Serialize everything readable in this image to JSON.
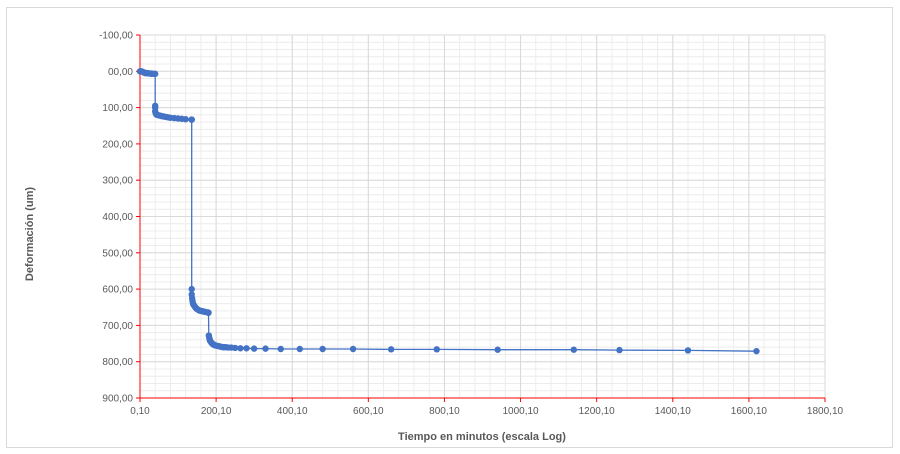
{
  "chart_data": {
    "type": "scatter",
    "title": "",
    "xlabel": "Tiempo en minutos (escala Log)",
    "ylabel": "Deformación (um)",
    "xlim": [
      0.1,
      1800.1
    ],
    "ylim": [
      -100,
      900
    ],
    "y_inverted": true,
    "x_ticks": [
      "0,10",
      "200,10",
      "400,10",
      "600,10",
      "800,10",
      "1000,10",
      "1200,10",
      "1400,10",
      "1600,10",
      "1800,10"
    ],
    "x_tick_values": [
      0.1,
      200.1,
      400.1,
      600.1,
      800.1,
      1000.1,
      1200.1,
      1400.1,
      1600.1,
      1800.1
    ],
    "y_ticks": [
      "-100,00",
      "00,00",
      "100,00",
      "200,00",
      "300,00",
      "400,00",
      "500,00",
      "600,00",
      "700,00",
      "800,00",
      "900,00"
    ],
    "y_tick_values": [
      -100,
      0,
      100,
      200,
      300,
      400,
      500,
      600,
      700,
      800,
      900
    ],
    "grid": true,
    "legend": "none",
    "colors": {
      "series": "#4472c4",
      "axis": "#ff0000",
      "grid": "#d9d9d9",
      "text": "#595959"
    },
    "series": [
      {
        "x": [
          0.1,
          2,
          4,
          6,
          8,
          10,
          12,
          14,
          16,
          18,
          20,
          24,
          28,
          30,
          32,
          34,
          36,
          40,
          40,
          40,
          40,
          41,
          42,
          43,
          45,
          48,
          52,
          56,
          60,
          65,
          70,
          75,
          80,
          90,
          100,
          110,
          120,
          136,
          136,
          136,
          136,
          137,
          138,
          139,
          140,
          142,
          144,
          146,
          148,
          150,
          153,
          156,
          160,
          164,
          168,
          172,
          178,
          180,
          180,
          181,
          182,
          183,
          184,
          186,
          188,
          190,
          192,
          195,
          198,
          202,
          206,
          210,
          214,
          218,
          222,
          226,
          232,
          240,
          250,
          264,
          280,
          300,
          330,
          370,
          420,
          480,
          560,
          660,
          780,
          940,
          1140,
          1260,
          1440,
          1620
        ],
        "y": [
          0,
          0,
          0,
          1,
          2,
          3,
          4,
          5,
          5,
          5,
          5,
          6,
          6,
          7,
          7,
          7,
          7,
          7,
          95,
          100,
          110,
          115,
          117,
          119,
          120,
          121,
          122,
          123,
          124,
          125,
          126,
          127,
          128,
          129,
          130,
          131,
          132,
          133,
          133,
          600,
          615,
          625,
          632,
          638,
          642,
          645,
          648,
          651,
          653,
          655,
          657,
          659,
          660,
          661,
          662,
          663,
          664,
          665,
          665,
          728,
          733,
          738,
          742,
          745,
          748,
          750,
          752,
          754,
          755,
          756,
          757,
          758,
          759,
          760,
          760,
          760,
          761,
          761,
          762,
          763,
          763,
          764,
          764,
          765,
          765,
          765,
          765,
          766,
          766,
          767,
          767,
          768,
          769,
          771
        ]
      }
    ]
  }
}
